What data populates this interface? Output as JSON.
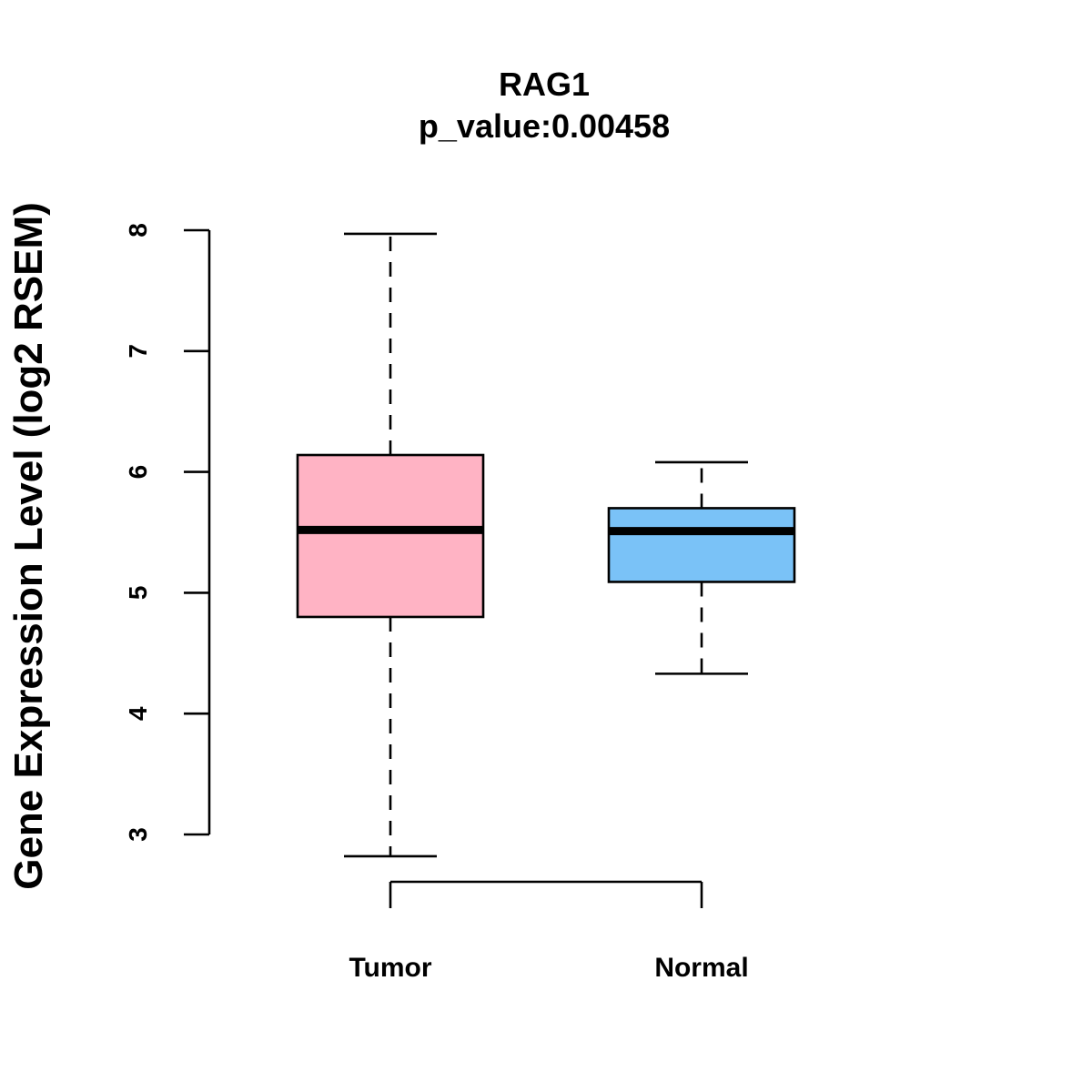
{
  "chart_data": {
    "type": "boxplot",
    "title": "RAG1",
    "subtitle": "p_value:0.00458",
    "xlabel": "",
    "ylabel": "Gene Expression Level (log2 RSEM)",
    "ylim": [
      3,
      8
    ],
    "yticks": [
      "3",
      "4",
      "5",
      "6",
      "7",
      "8"
    ],
    "categories": [
      "Tumor",
      "Normal"
    ],
    "series": [
      {
        "name": "Tumor",
        "color": "#FFB3C4",
        "whisker_low": 2.82,
        "q1": 4.8,
        "median": 5.52,
        "q3": 6.14,
        "whisker_high": 7.97
      },
      {
        "name": "Normal",
        "color": "#7AC2F7",
        "whisker_low": 4.33,
        "q1": 5.09,
        "median": 5.51,
        "q3": 5.7,
        "whisker_high": 6.08
      }
    ],
    "comparison": {
      "from": "Tumor",
      "to": "Normal"
    },
    "grid": false,
    "legend": "none"
  }
}
